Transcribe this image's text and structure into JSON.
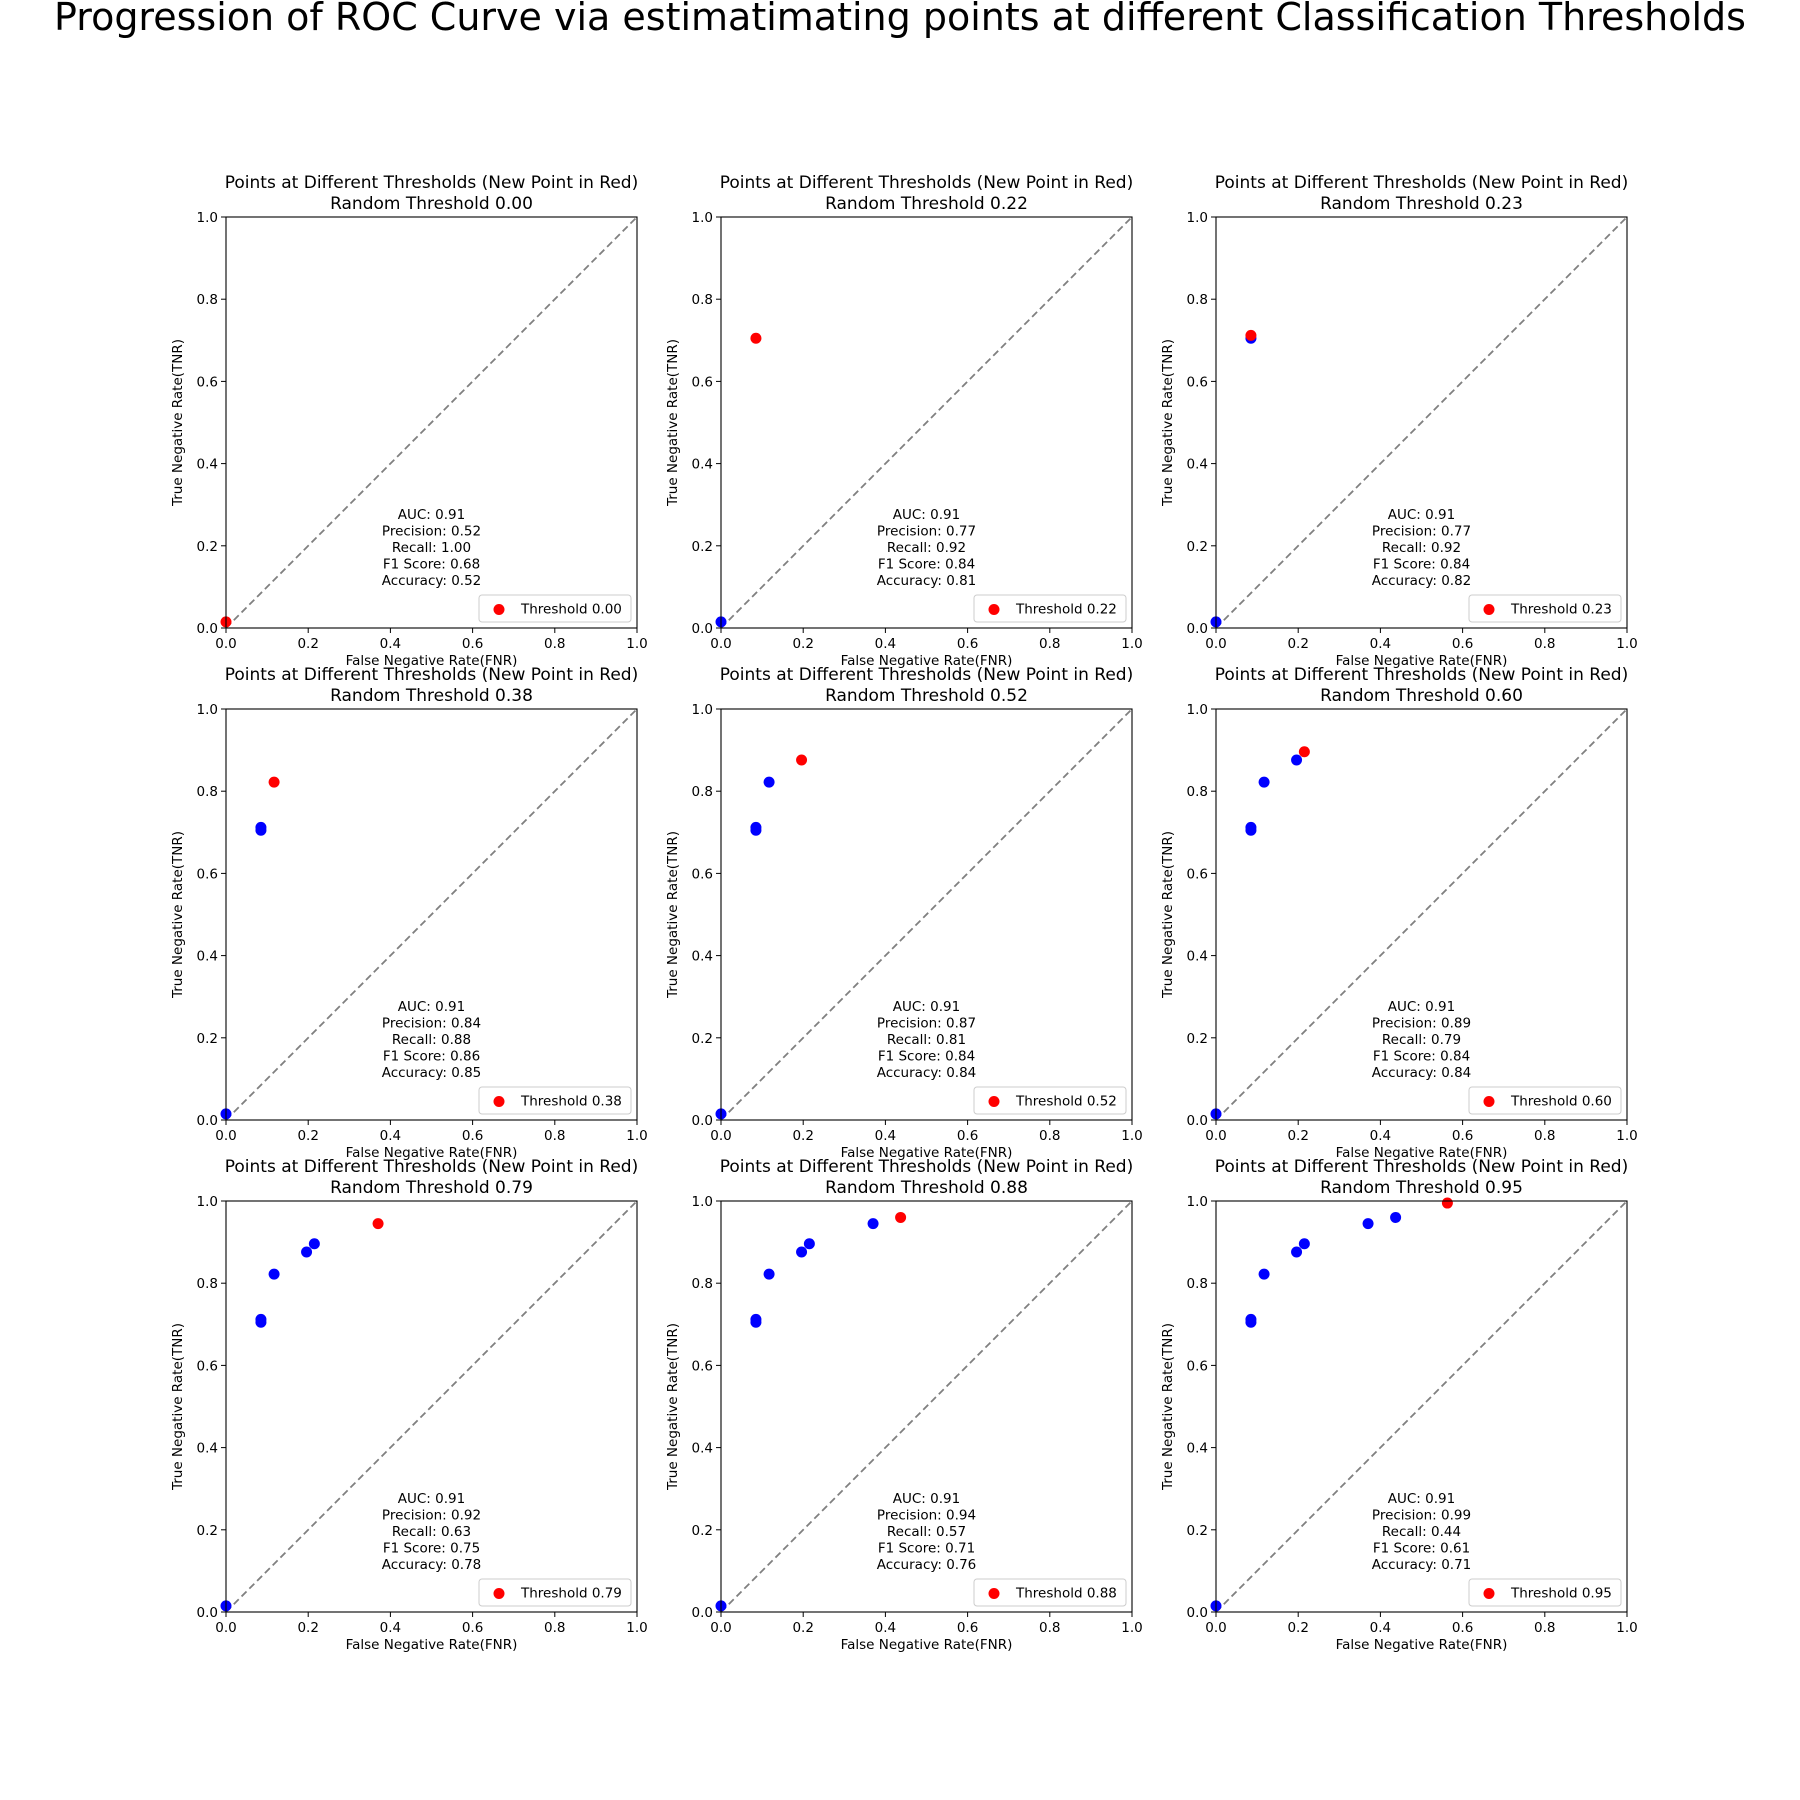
{
  "figure": {
    "title": "Progression of ROC Curve via estimatimating points at different Classification Thresholds"
  },
  "colors": {
    "previous_points": "#0000ff",
    "new_point": "#ff0000",
    "diagonal": "#808080",
    "axes": "#000000"
  },
  "chart_data": [
    {
      "type": "scatter",
      "title": "Points at Different Thresholds (New Point in Red)",
      "subtitle": "Random Threshold 0.00",
      "xlabel": "False Negative Rate(FNR)",
      "ylabel": "True Negative Rate(TNR)",
      "xlim": [
        0,
        1
      ],
      "ylim": [
        0,
        1
      ],
      "xticks": [
        "0.0",
        "0.2",
        "0.4",
        "0.6",
        "0.8",
        "1.0"
      ],
      "yticks": [
        "0.0",
        "0.2",
        "0.4",
        "0.6",
        "0.8",
        "1.0"
      ],
      "reference_line": "dashed diagonal",
      "previous_points": [],
      "new_point": {
        "x": 0.0,
        "y": 0.015
      },
      "legend": {
        "label": "Threshold 0.00",
        "position": "lower-right"
      },
      "metrics": [
        "AUC: 0.91",
        "Precision: 0.52",
        "Recall: 1.00",
        "F1 Score: 0.68",
        "Accuracy: 0.52"
      ]
    },
    {
      "type": "scatter",
      "title": "Points at Different Thresholds (New Point in Red)",
      "subtitle": "Random Threshold 0.22",
      "xlabel": "False Negative Rate(FNR)",
      "ylabel": "True Negative Rate(TNR)",
      "xlim": [
        0,
        1
      ],
      "ylim": [
        0,
        1
      ],
      "xticks": [
        "0.0",
        "0.2",
        "0.4",
        "0.6",
        "0.8",
        "1.0"
      ],
      "yticks": [
        "0.0",
        "0.2",
        "0.4",
        "0.6",
        "0.8",
        "1.0"
      ],
      "reference_line": "dashed diagonal",
      "previous_points": [
        {
          "x": 0.0,
          "y": 0.015
        }
      ],
      "new_point": {
        "x": 0.085,
        "y": 0.705
      },
      "legend": {
        "label": "Threshold 0.22",
        "position": "lower-right"
      },
      "metrics": [
        "AUC: 0.91",
        "Precision: 0.77",
        "Recall: 0.92",
        "F1 Score: 0.84",
        "Accuracy: 0.81"
      ]
    },
    {
      "type": "scatter",
      "title": "Points at Different Thresholds (New Point in Red)",
      "subtitle": "Random Threshold 0.23",
      "xlabel": "False Negative Rate(FNR)",
      "ylabel": "True Negative Rate(TNR)",
      "xlim": [
        0,
        1
      ],
      "ylim": [
        0,
        1
      ],
      "xticks": [
        "0.0",
        "0.2",
        "0.4",
        "0.6",
        "0.8",
        "1.0"
      ],
      "yticks": [
        "0.0",
        "0.2",
        "0.4",
        "0.6",
        "0.8",
        "1.0"
      ],
      "reference_line": "dashed diagonal",
      "previous_points": [
        {
          "x": 0.0,
          "y": 0.015
        },
        {
          "x": 0.085,
          "y": 0.705
        }
      ],
      "new_point": {
        "x": 0.085,
        "y": 0.712
      },
      "legend": {
        "label": "Threshold 0.23",
        "position": "lower-right"
      },
      "metrics": [
        "AUC: 0.91",
        "Precision: 0.77",
        "Recall: 0.92",
        "F1 Score: 0.84",
        "Accuracy: 0.82"
      ]
    },
    {
      "type": "scatter",
      "title": "Points at Different Thresholds (New Point in Red)",
      "subtitle": "Random Threshold 0.38",
      "xlabel": "False Negative Rate(FNR)",
      "ylabel": "True Negative Rate(TNR)",
      "xlim": [
        0,
        1
      ],
      "ylim": [
        0,
        1
      ],
      "xticks": [
        "0.0",
        "0.2",
        "0.4",
        "0.6",
        "0.8",
        "1.0"
      ],
      "yticks": [
        "0.0",
        "0.2",
        "0.4",
        "0.6",
        "0.8",
        "1.0"
      ],
      "reference_line": "dashed diagonal",
      "previous_points": [
        {
          "x": 0.0,
          "y": 0.015
        },
        {
          "x": 0.085,
          "y": 0.705
        },
        {
          "x": 0.085,
          "y": 0.712
        }
      ],
      "new_point": {
        "x": 0.117,
        "y": 0.822
      },
      "legend": {
        "label": "Threshold 0.38",
        "position": "lower-right"
      },
      "metrics": [
        "AUC: 0.91",
        "Precision: 0.84",
        "Recall: 0.88",
        "F1 Score: 0.86",
        "Accuracy: 0.85"
      ]
    },
    {
      "type": "scatter",
      "title": "Points at Different Thresholds (New Point in Red)",
      "subtitle": "Random Threshold 0.52",
      "xlabel": "False Negative Rate(FNR)",
      "ylabel": "True Negative Rate(TNR)",
      "xlim": [
        0,
        1
      ],
      "ylim": [
        0,
        1
      ],
      "xticks": [
        "0.0",
        "0.2",
        "0.4",
        "0.6",
        "0.8",
        "1.0"
      ],
      "yticks": [
        "0.0",
        "0.2",
        "0.4",
        "0.6",
        "0.8",
        "1.0"
      ],
      "reference_line": "dashed diagonal",
      "previous_points": [
        {
          "x": 0.0,
          "y": 0.015
        },
        {
          "x": 0.085,
          "y": 0.705
        },
        {
          "x": 0.085,
          "y": 0.712
        },
        {
          "x": 0.117,
          "y": 0.822
        }
      ],
      "new_point": {
        "x": 0.196,
        "y": 0.876
      },
      "legend": {
        "label": "Threshold 0.52",
        "position": "lower-right"
      },
      "metrics": [
        "AUC: 0.91",
        "Precision: 0.87",
        "Recall: 0.81",
        "F1 Score: 0.84",
        "Accuracy: 0.84"
      ]
    },
    {
      "type": "scatter",
      "title": "Points at Different Thresholds (New Point in Red)",
      "subtitle": "Random Threshold 0.60",
      "xlabel": "False Negative Rate(FNR)",
      "ylabel": "True Negative Rate(TNR)",
      "xlim": [
        0,
        1
      ],
      "ylim": [
        0,
        1
      ],
      "xticks": [
        "0.0",
        "0.2",
        "0.4",
        "0.6",
        "0.8",
        "1.0"
      ],
      "yticks": [
        "0.0",
        "0.2",
        "0.4",
        "0.6",
        "0.8",
        "1.0"
      ],
      "reference_line": "dashed diagonal",
      "previous_points": [
        {
          "x": 0.0,
          "y": 0.015
        },
        {
          "x": 0.085,
          "y": 0.705
        },
        {
          "x": 0.085,
          "y": 0.712
        },
        {
          "x": 0.117,
          "y": 0.822
        },
        {
          "x": 0.196,
          "y": 0.876
        }
      ],
      "new_point": {
        "x": 0.215,
        "y": 0.896
      },
      "legend": {
        "label": "Threshold 0.60",
        "position": "lower-right"
      },
      "metrics": [
        "AUC: 0.91",
        "Precision: 0.89",
        "Recall: 0.79",
        "F1 Score: 0.84",
        "Accuracy: 0.84"
      ]
    },
    {
      "type": "scatter",
      "title": "Points at Different Thresholds (New Point in Red)",
      "subtitle": "Random Threshold 0.79",
      "xlabel": "False Negative Rate(FNR)",
      "ylabel": "True Negative Rate(TNR)",
      "xlim": [
        0,
        1
      ],
      "ylim": [
        0,
        1
      ],
      "xticks": [
        "0.0",
        "0.2",
        "0.4",
        "0.6",
        "0.8",
        "1.0"
      ],
      "yticks": [
        "0.0",
        "0.2",
        "0.4",
        "0.6",
        "0.8",
        "1.0"
      ],
      "reference_line": "dashed diagonal",
      "previous_points": [
        {
          "x": 0.0,
          "y": 0.015
        },
        {
          "x": 0.085,
          "y": 0.705
        },
        {
          "x": 0.085,
          "y": 0.712
        },
        {
          "x": 0.117,
          "y": 0.822
        },
        {
          "x": 0.196,
          "y": 0.876
        },
        {
          "x": 0.215,
          "y": 0.896
        }
      ],
      "new_point": {
        "x": 0.37,
        "y": 0.945
      },
      "legend": {
        "label": "Threshold 0.79",
        "position": "lower-right"
      },
      "metrics": [
        "AUC: 0.91",
        "Precision: 0.92",
        "Recall: 0.63",
        "F1 Score: 0.75",
        "Accuracy: 0.78"
      ]
    },
    {
      "type": "scatter",
      "title": "Points at Different Thresholds (New Point in Red)",
      "subtitle": "Random Threshold 0.88",
      "xlabel": "False Negative Rate(FNR)",
      "ylabel": "True Negative Rate(TNR)",
      "xlim": [
        0,
        1
      ],
      "ylim": [
        0,
        1
      ],
      "xticks": [
        "0.0",
        "0.2",
        "0.4",
        "0.6",
        "0.8",
        "1.0"
      ],
      "yticks": [
        "0.0",
        "0.2",
        "0.4",
        "0.6",
        "0.8",
        "1.0"
      ],
      "reference_line": "dashed diagonal",
      "previous_points": [
        {
          "x": 0.0,
          "y": 0.015
        },
        {
          "x": 0.085,
          "y": 0.705
        },
        {
          "x": 0.085,
          "y": 0.712
        },
        {
          "x": 0.117,
          "y": 0.822
        },
        {
          "x": 0.196,
          "y": 0.876
        },
        {
          "x": 0.215,
          "y": 0.896
        },
        {
          "x": 0.37,
          "y": 0.945
        }
      ],
      "new_point": {
        "x": 0.437,
        "y": 0.96
      },
      "legend": {
        "label": "Threshold 0.88",
        "position": "lower-right"
      },
      "metrics": [
        "AUC: 0.91",
        "Precision: 0.94",
        "Recall: 0.57",
        "F1 Score: 0.71",
        "Accuracy: 0.76"
      ]
    },
    {
      "type": "scatter",
      "title": "Points at Different Thresholds (New Point in Red)",
      "subtitle": "Random Threshold 0.95",
      "xlabel": "False Negative Rate(FNR)",
      "ylabel": "True Negative Rate(TNR)",
      "xlim": [
        0,
        1
      ],
      "ylim": [
        0,
        1
      ],
      "xticks": [
        "0.0",
        "0.2",
        "0.4",
        "0.6",
        "0.8",
        "1.0"
      ],
      "yticks": [
        "0.0",
        "0.2",
        "0.4",
        "0.6",
        "0.8",
        "1.0"
      ],
      "reference_line": "dashed diagonal",
      "previous_points": [
        {
          "x": 0.0,
          "y": 0.015
        },
        {
          "x": 0.085,
          "y": 0.705
        },
        {
          "x": 0.085,
          "y": 0.712
        },
        {
          "x": 0.117,
          "y": 0.822
        },
        {
          "x": 0.196,
          "y": 0.876
        },
        {
          "x": 0.215,
          "y": 0.896
        },
        {
          "x": 0.37,
          "y": 0.945
        },
        {
          "x": 0.437,
          "y": 0.96
        }
      ],
      "new_point": {
        "x": 0.563,
        "y": 0.995
      },
      "legend": {
        "label": "Threshold 0.95",
        "position": "lower-right"
      },
      "metrics": [
        "AUC: 0.91",
        "Precision: 0.99",
        "Recall: 0.44",
        "F1 Score: 0.61",
        "Accuracy: 0.71"
      ]
    }
  ]
}
